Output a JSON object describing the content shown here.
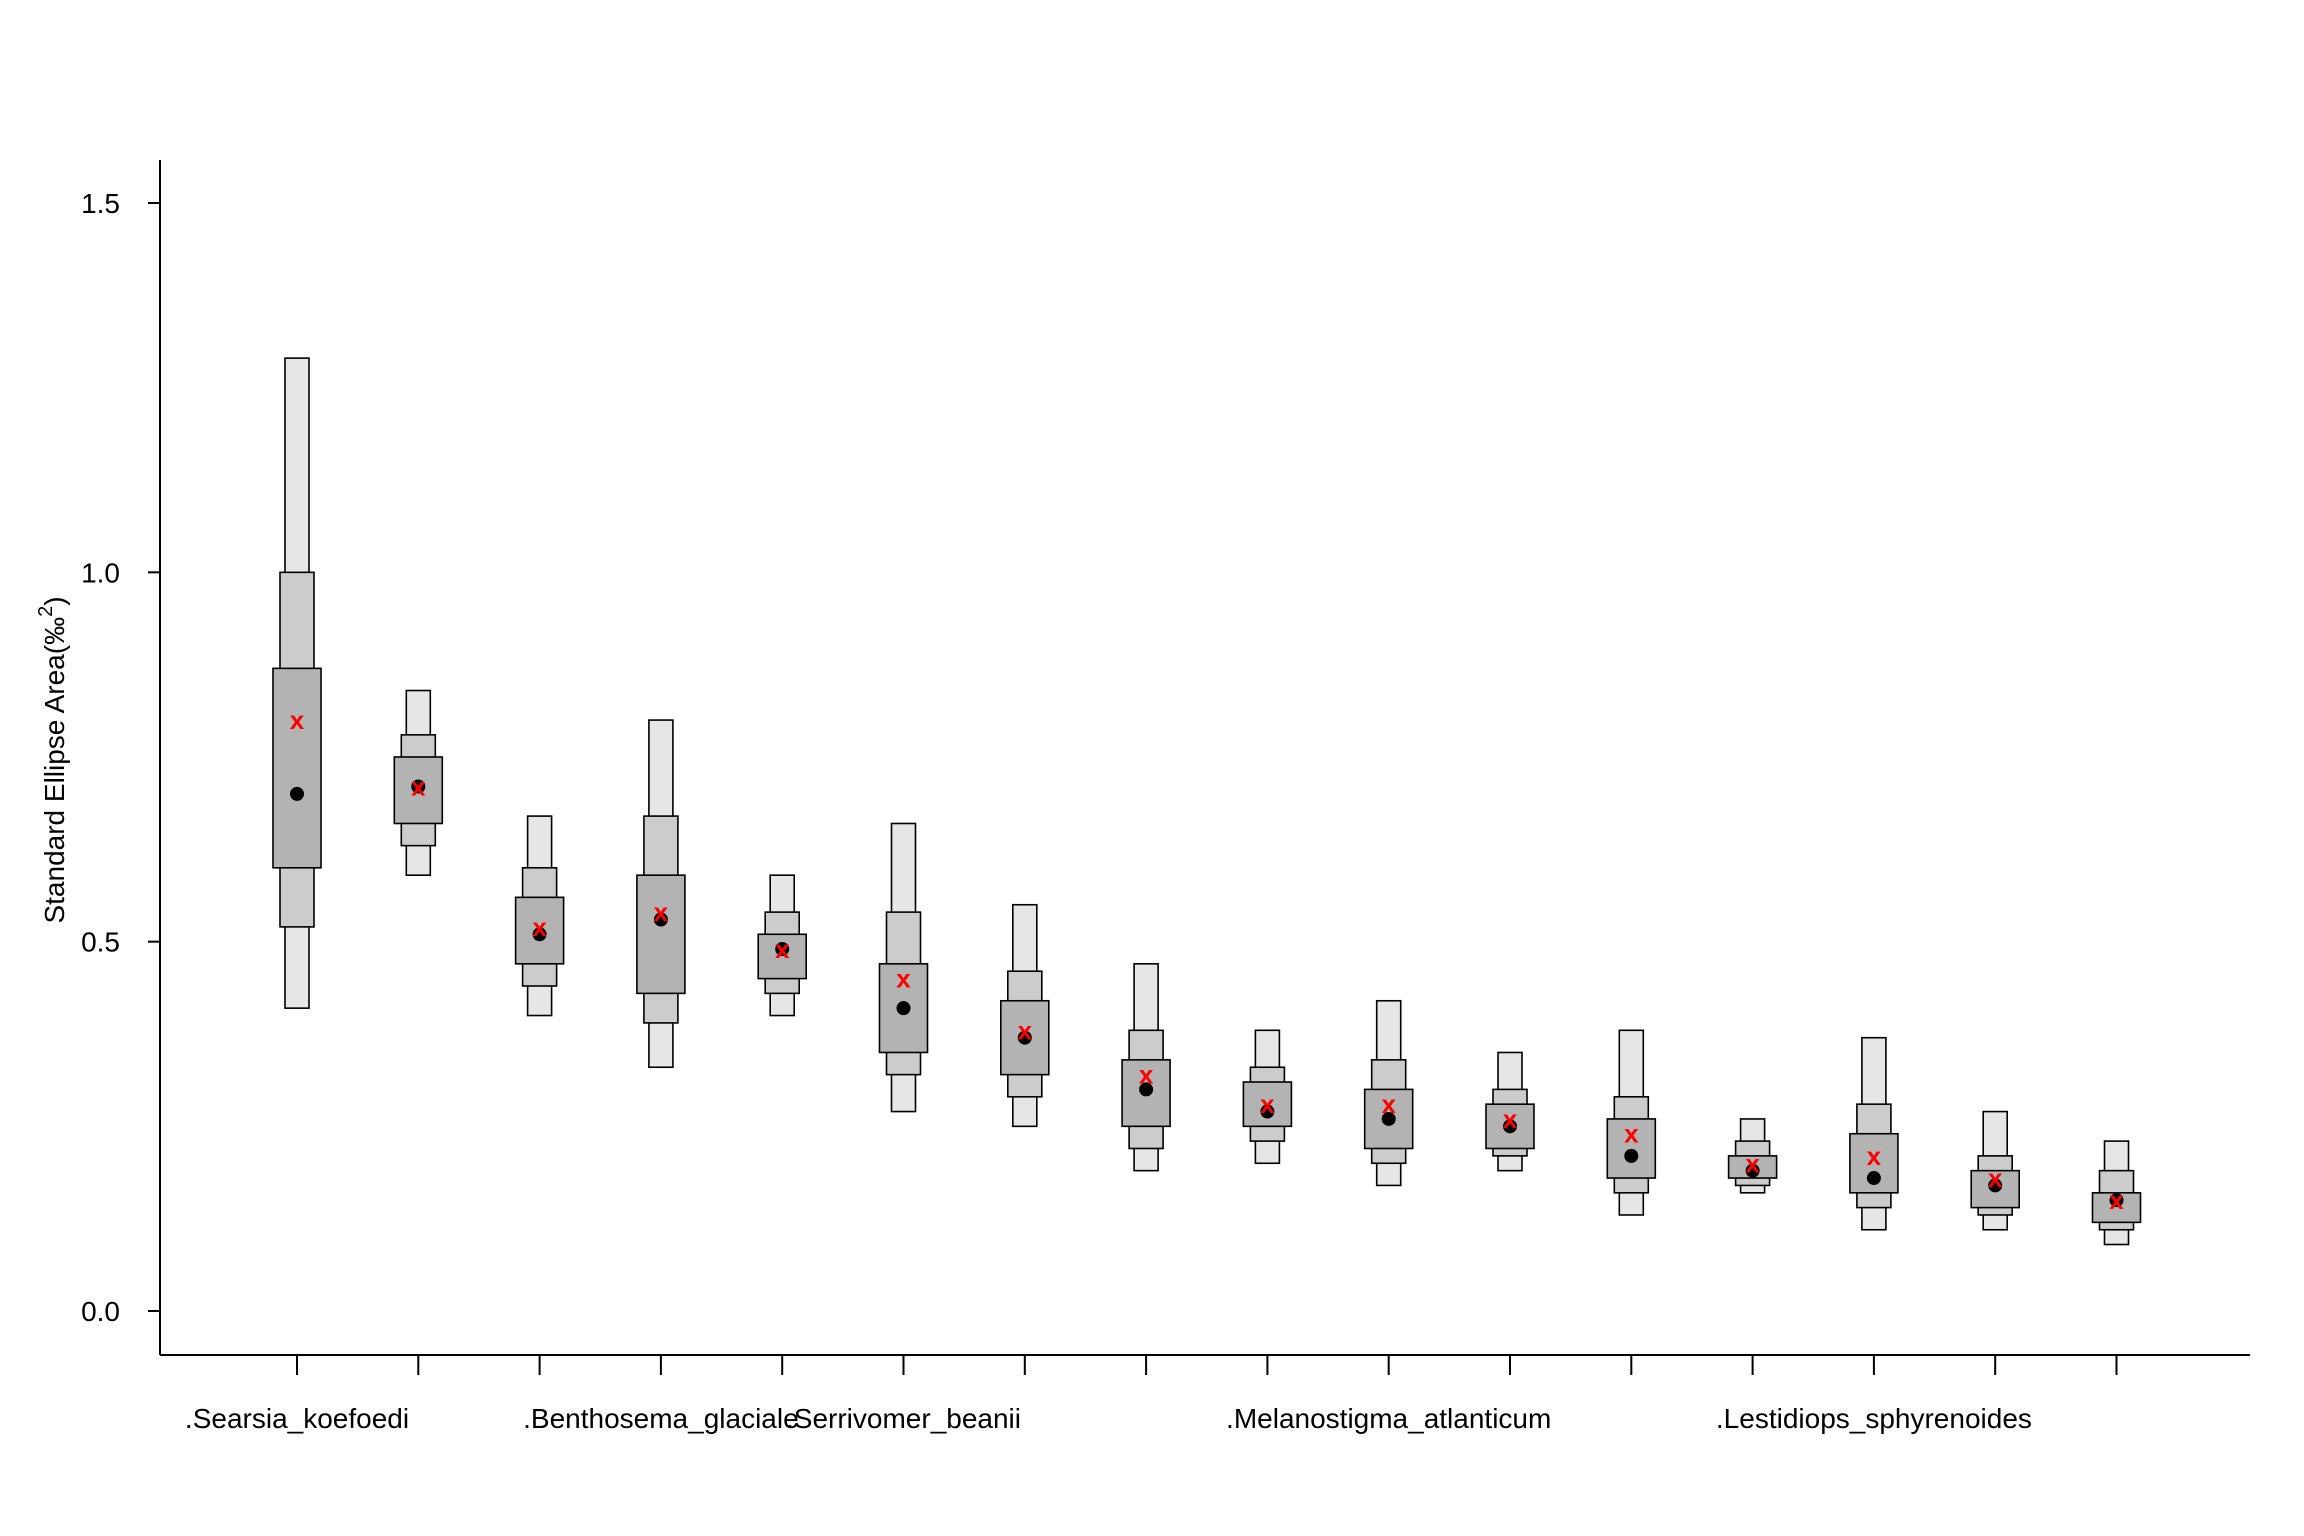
{
  "colors": {
    "ci95": "#e6e6e6",
    "ci75": "#cccccc",
    "ci50": "#b3b3b3",
    "mode": "#000000",
    "ml": "#ff0000"
  },
  "chart_data": {
    "type": "box",
    "ylabel": "Standard Ellipse Area",
    "ylabel_unit": "(‰",
    "ylabel_sup": "2",
    "ylabel_close": ")",
    "ylim": [
      -0.06,
      1.56
    ],
    "yticks": [
      "0.0",
      "0.5",
      "1.0",
      "1.5"
    ],
    "ytick_values": [
      0.0,
      0.5,
      1.0,
      1.5
    ],
    "grid": false,
    "xlabels_shown": [
      {
        "index": 0,
        "text": ".Searsia_koefoedi"
      },
      {
        "index": 3,
        "text": ".Benthosema_glaciale"
      },
      {
        "index": 5,
        "text": ".Serrivomer_beanii"
      },
      {
        "index": 9,
        "text": ".Melanostigma_atlanticum"
      },
      {
        "index": 13,
        "text": ".Lestidiops_sphyrenoides"
      }
    ],
    "groups": [
      {
        "ci95": [
          0.41,
          1.29
        ],
        "ci75": [
          0.52,
          1.0
        ],
        "ci50": [
          0.6,
          0.87
        ],
        "mode": 0.7,
        "ml": 0.8
      },
      {
        "ci95": [
          0.59,
          0.84
        ],
        "ci75": [
          0.63,
          0.78
        ],
        "ci50": [
          0.66,
          0.75
        ],
        "mode": 0.71,
        "ml": 0.71
      },
      {
        "ci95": [
          0.4,
          0.67
        ],
        "ci75": [
          0.44,
          0.6
        ],
        "ci50": [
          0.47,
          0.56
        ],
        "mode": 0.51,
        "ml": 0.52
      },
      {
        "ci95": [
          0.33,
          0.8
        ],
        "ci75": [
          0.39,
          0.67
        ],
        "ci50": [
          0.43,
          0.59
        ],
        "mode": 0.53,
        "ml": 0.54
      },
      {
        "ci95": [
          0.4,
          0.59
        ],
        "ci75": [
          0.43,
          0.54
        ],
        "ci50": [
          0.45,
          0.51
        ],
        "mode": 0.49,
        "ml": 0.49
      },
      {
        "ci95": [
          0.27,
          0.66
        ],
        "ci75": [
          0.32,
          0.54
        ],
        "ci50": [
          0.35,
          0.47
        ],
        "mode": 0.41,
        "ml": 0.45
      },
      {
        "ci95": [
          0.25,
          0.55
        ],
        "ci75": [
          0.29,
          0.46
        ],
        "ci50": [
          0.32,
          0.42
        ],
        "mode": 0.37,
        "ml": 0.38
      },
      {
        "ci95": [
          0.19,
          0.47
        ],
        "ci75": [
          0.22,
          0.38
        ],
        "ci50": [
          0.25,
          0.34
        ],
        "mode": 0.3,
        "ml": 0.32
      },
      {
        "ci95": [
          0.2,
          0.38
        ],
        "ci75": [
          0.23,
          0.33
        ],
        "ci50": [
          0.25,
          0.31
        ],
        "mode": 0.27,
        "ml": 0.28
      },
      {
        "ci95": [
          0.17,
          0.42
        ],
        "ci75": [
          0.2,
          0.34
        ],
        "ci50": [
          0.22,
          0.3
        ],
        "mode": 0.26,
        "ml": 0.28
      },
      {
        "ci95": [
          0.19,
          0.35
        ],
        "ci75": [
          0.21,
          0.3
        ],
        "ci50": [
          0.22,
          0.28
        ],
        "mode": 0.25,
        "ml": 0.26
      },
      {
        "ci95": [
          0.13,
          0.38
        ],
        "ci75": [
          0.16,
          0.29
        ],
        "ci50": [
          0.18,
          0.26
        ],
        "mode": 0.21,
        "ml": 0.24
      },
      {
        "ci95": [
          0.16,
          0.26
        ],
        "ci75": [
          0.17,
          0.23
        ],
        "ci50": [
          0.18,
          0.21
        ],
        "mode": 0.19,
        "ml": 0.2
      },
      {
        "ci95": [
          0.11,
          0.37
        ],
        "ci75": [
          0.14,
          0.28
        ],
        "ci50": [
          0.16,
          0.24
        ],
        "mode": 0.18,
        "ml": 0.21
      },
      {
        "ci95": [
          0.11,
          0.27
        ],
        "ci75": [
          0.13,
          0.21
        ],
        "ci50": [
          0.14,
          0.19
        ],
        "mode": 0.17,
        "ml": 0.18
      },
      {
        "ci95": [
          0.09,
          0.23
        ],
        "ci75": [
          0.11,
          0.19
        ],
        "ci50": [
          0.12,
          0.16
        ],
        "mode": 0.15,
        "ml": 0.15
      }
    ]
  }
}
